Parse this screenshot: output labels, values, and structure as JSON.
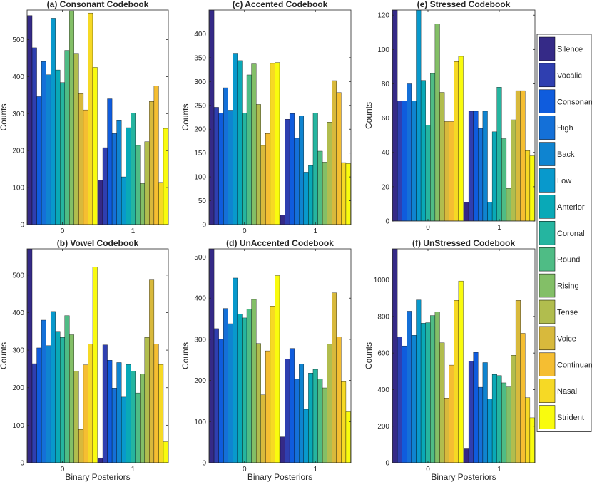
{
  "figure": {
    "x_axis_label": "Binary Posteriors"
  },
  "legend": {
    "entries": [
      "Silence",
      "Vocalic",
      "Consonant",
      "High",
      "Back",
      "Low",
      "Anterior",
      "Coronal",
      "Round",
      "Rising",
      "Tense",
      "Voice",
      "Continuant",
      "Nasal",
      "Strident"
    ],
    "colors": [
      "#352a87",
      "#2f3fb0",
      "#0f5cdd",
      "#1470d8",
      "#0f84d0",
      "#0899cc",
      "#09a9b7",
      "#25b5a0",
      "#4fbc85",
      "#83bf67",
      "#b1bd4e",
      "#d8b93c",
      "#f5be32",
      "#f6d925",
      "#f9fb0e"
    ]
  },
  "chart_data": [
    {
      "id": "a",
      "type": "bar",
      "title": "(a) Consonant Codebook",
      "xlabel": "",
      "ylabel": "Counts",
      "ylim": [
        0,
        580
      ],
      "yticks": [
        0,
        100,
        200,
        300,
        400,
        500
      ],
      "categories": [
        "0",
        "1"
      ],
      "series": [
        {
          "name": "Silence",
          "values": [
            565,
            120
          ]
        },
        {
          "name": "Vocalic",
          "values": [
            478,
            208
          ]
        },
        {
          "name": "Consonant",
          "values": [
            346,
            340
          ]
        },
        {
          "name": "High",
          "values": [
            441,
            246
          ]
        },
        {
          "name": "Back",
          "values": [
            405,
            281
          ]
        },
        {
          "name": "Low",
          "values": [
            558,
            129
          ]
        },
        {
          "name": "Anterior",
          "values": [
            418,
            262
          ]
        },
        {
          "name": "Coronal",
          "values": [
            384,
            302
          ]
        },
        {
          "name": "Round",
          "values": [
            471,
            214
          ]
        },
        {
          "name": "Rising",
          "values": [
            578,
            111
          ]
        },
        {
          "name": "Tense",
          "values": [
            461,
            224
          ]
        },
        {
          "name": "Voice",
          "values": [
            354,
            333
          ]
        },
        {
          "name": "Continuant",
          "values": [
            310,
            375
          ]
        },
        {
          "name": "Nasal",
          "values": [
            572,
            114
          ]
        },
        {
          "name": "Strident",
          "values": [
            425,
            260
          ]
        }
      ]
    },
    {
      "id": "c",
      "type": "bar",
      "title": "(c) Accented Codebook",
      "xlabel": "",
      "ylabel": "Counts",
      "ylim": [
        0,
        450
      ],
      "yticks": [
        0,
        50,
        100,
        150,
        200,
        250,
        300,
        350,
        400
      ],
      "categories": [
        "0",
        "1"
      ],
      "series": [
        {
          "name": "Silence",
          "values": [
            450,
            20
          ]
        },
        {
          "name": "Vocalic",
          "values": [
            246,
            221
          ]
        },
        {
          "name": "Consonant",
          "values": [
            234,
            233
          ]
        },
        {
          "name": "High",
          "values": [
            287,
            181
          ]
        },
        {
          "name": "Back",
          "values": [
            240,
            228
          ]
        },
        {
          "name": "Low",
          "values": [
            358,
            110
          ]
        },
        {
          "name": "Anterior",
          "values": [
            344,
            124
          ]
        },
        {
          "name": "Coronal",
          "values": [
            234,
            234
          ]
        },
        {
          "name": "Round",
          "values": [
            314,
            154
          ]
        },
        {
          "name": "Rising",
          "values": [
            337,
            131
          ]
        },
        {
          "name": "Tense",
          "values": [
            252,
            215
          ]
        },
        {
          "name": "Voice",
          "values": [
            166,
            302
          ]
        },
        {
          "name": "Continuant",
          "values": [
            191,
            277
          ]
        },
        {
          "name": "Nasal",
          "values": [
            338,
            130
          ]
        },
        {
          "name": "Strident",
          "values": [
            340,
            128
          ]
        }
      ]
    },
    {
      "id": "e",
      "type": "bar",
      "title": "(e) Stressed Codebook",
      "xlabel": "",
      "ylabel": "Counts",
      "ylim": [
        0,
        123
      ],
      "yticks": [
        0,
        20,
        40,
        60,
        80,
        100,
        120
      ],
      "categories": [
        "0",
        "1"
      ],
      "series": [
        {
          "name": "Silence",
          "values": [
            123,
            11
          ]
        },
        {
          "name": "Vocalic",
          "values": [
            70,
            64
          ]
        },
        {
          "name": "Consonant",
          "values": [
            70,
            64
          ]
        },
        {
          "name": "High",
          "values": [
            80,
            54
          ]
        },
        {
          "name": "Back",
          "values": [
            70,
            64
          ]
        },
        {
          "name": "Low",
          "values": [
            123,
            11
          ]
        },
        {
          "name": "Anterior",
          "values": [
            82,
            52
          ]
        },
        {
          "name": "Coronal",
          "values": [
            56,
            78
          ]
        },
        {
          "name": "Round",
          "values": [
            86,
            48
          ]
        },
        {
          "name": "Rising",
          "values": [
            115,
            19
          ]
        },
        {
          "name": "Tense",
          "values": [
            75,
            59
          ]
        },
        {
          "name": "Voice",
          "values": [
            58,
            76
          ]
        },
        {
          "name": "Continuant",
          "values": [
            58,
            76
          ]
        },
        {
          "name": "Nasal",
          "values": [
            93,
            41
          ]
        },
        {
          "name": "Strident",
          "values": [
            96,
            38
          ]
        }
      ]
    },
    {
      "id": "b",
      "type": "bar",
      "title": "(b) Vowel Codebook",
      "xlabel": "Binary Posteriors",
      "ylabel": "Counts",
      "ylim": [
        0,
        570
      ],
      "yticks": [
        0,
        100,
        200,
        300,
        400,
        500
      ],
      "categories": [
        "0",
        "1"
      ],
      "series": [
        {
          "name": "Silence",
          "values": [
            570,
            13
          ]
        },
        {
          "name": "Vocalic",
          "values": [
            264,
            314
          ]
        },
        {
          "name": "Consonant",
          "values": [
            306,
            273
          ]
        },
        {
          "name": "High",
          "values": [
            380,
            199
          ]
        },
        {
          "name": "Back",
          "values": [
            312,
            267
          ]
        },
        {
          "name": "Low",
          "values": [
            403,
            175
          ]
        },
        {
          "name": "Anterior",
          "values": [
            350,
            262
          ]
        },
        {
          "name": "Coronal",
          "values": [
            334,
            244
          ]
        },
        {
          "name": "Round",
          "values": [
            392,
            186
          ]
        },
        {
          "name": "Rising",
          "values": [
            341,
            237
          ]
        },
        {
          "name": "Tense",
          "values": [
            244,
            334
          ]
        },
        {
          "name": "Voice",
          "values": [
            89,
            489
          ]
        },
        {
          "name": "Continuant",
          "values": [
            261,
            316
          ]
        },
        {
          "name": "Nasal",
          "values": [
            316,
            262
          ]
        },
        {
          "name": "Strident",
          "values": [
            522,
            56
          ]
        }
      ]
    },
    {
      "id": "d",
      "type": "bar",
      "title": "(d) UnAccented Codebook",
      "xlabel": "Binary Posteriors",
      "ylabel": "Counts",
      "ylim": [
        0,
        520
      ],
      "yticks": [
        0,
        100,
        200,
        300,
        400,
        500
      ],
      "categories": [
        "0",
        "1"
      ],
      "series": [
        {
          "name": "Silence",
          "values": [
            520,
            63
          ]
        },
        {
          "name": "Vocalic",
          "values": [
            326,
            252
          ]
        },
        {
          "name": "Consonant",
          "values": [
            300,
            278
          ]
        },
        {
          "name": "High",
          "values": [
            375,
            203
          ]
        },
        {
          "name": "Back",
          "values": [
            338,
            240
          ]
        },
        {
          "name": "Low",
          "values": [
            449,
            130
          ]
        },
        {
          "name": "Anterior",
          "values": [
            361,
            218
          ]
        },
        {
          "name": "Coronal",
          "values": [
            352,
            227
          ]
        },
        {
          "name": "Round",
          "values": [
            374,
            204
          ]
        },
        {
          "name": "Rising",
          "values": [
            397,
            182
          ]
        },
        {
          "name": "Tense",
          "values": [
            290,
            288
          ]
        },
        {
          "name": "Voice",
          "values": [
            165,
            413
          ]
        },
        {
          "name": "Continuant",
          "values": [
            272,
            306
          ]
        },
        {
          "name": "Nasal",
          "values": [
            381,
            197
          ]
        },
        {
          "name": "Strident",
          "values": [
            455,
            124
          ]
        }
      ]
    },
    {
      "id": "f",
      "type": "bar",
      "title": "(f) UnStressed Codebook",
      "xlabel": "Binary Posteriors",
      "ylabel": "Counts",
      "ylim": [
        0,
        1170
      ],
      "yticks": [
        0,
        200,
        400,
        600,
        800,
        1000
      ],
      "categories": [
        "0",
        "1"
      ],
      "series": [
        {
          "name": "Silence",
          "values": [
            1170,
            76
          ]
        },
        {
          "name": "Vocalic",
          "values": [
            687,
            557
          ]
        },
        {
          "name": "Consonant",
          "values": [
            639,
            604
          ]
        },
        {
          "name": "High",
          "values": [
            829,
            413
          ]
        },
        {
          "name": "Back",
          "values": [
            697,
            548
          ]
        },
        {
          "name": "Low",
          "values": [
            890,
            350
          ]
        },
        {
          "name": "Anterior",
          "values": [
            763,
            483
          ]
        },
        {
          "name": "Coronal",
          "values": [
            766,
            477
          ]
        },
        {
          "name": "Round",
          "values": [
            805,
            437
          ]
        },
        {
          "name": "Rising",
          "values": [
            826,
            415
          ]
        },
        {
          "name": "Tense",
          "values": [
            656,
            588
          ]
        },
        {
          "name": "Voice",
          "values": [
            354,
            888
          ]
        },
        {
          "name": "Continuant",
          "values": [
            534,
            708
          ]
        },
        {
          "name": "Nasal",
          "values": [
            888,
            356
          ]
        },
        {
          "name": "Strident",
          "values": [
            994,
            246
          ]
        }
      ]
    }
  ]
}
